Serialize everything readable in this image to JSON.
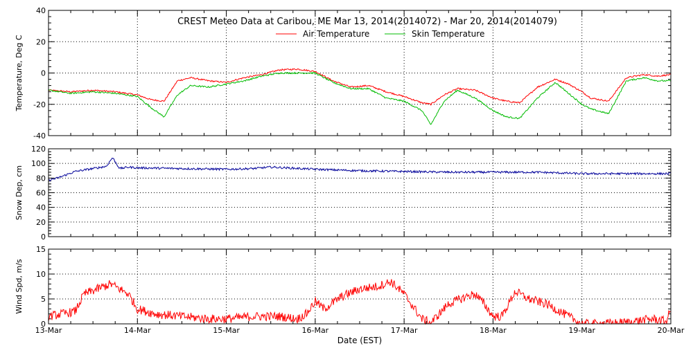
{
  "chart_data": [
    {
      "type": "line",
      "title": "CREST Meteo Data at Caribou, ME   Mar 13, 2014(2014072) - Mar 20, 2014(2014079)",
      "ylabel": "Temperature, Deg C",
      "ylim": [
        -40,
        40
      ],
      "yticks": [
        -40,
        -20,
        0,
        20,
        40
      ],
      "xlim": [
        0,
        7
      ],
      "grid": true,
      "legend": "top-center",
      "series": [
        {
          "name": "Air Temperature",
          "color": "#ff0000",
          "x": [
            0,
            0.25,
            0.5,
            0.75,
            1.0,
            1.15,
            1.3,
            1.45,
            1.6,
            1.8,
            2.0,
            2.2,
            2.4,
            2.6,
            2.8,
            3.0,
            3.2,
            3.4,
            3.6,
            3.8,
            4.0,
            4.2,
            4.3,
            4.45,
            4.6,
            4.8,
            5.0,
            5.15,
            5.3,
            5.5,
            5.7,
            5.85,
            6.0,
            6.1,
            6.3,
            6.5,
            6.7,
            6.85,
            7.0
          ],
          "values": [
            -11,
            -12,
            -11,
            -12,
            -14,
            -17,
            -18,
            -5,
            -3,
            -5,
            -6,
            -3,
            -1,
            2,
            2.5,
            1,
            -5,
            -9,
            -8,
            -12,
            -15,
            -19,
            -20,
            -14,
            -10,
            -11,
            -16,
            -18,
            -19,
            -9,
            -4,
            -7,
            -12,
            -16,
            -18,
            -3,
            -1,
            -2,
            -1
          ]
        },
        {
          "name": "Skin Temperature",
          "color": "#00bb00",
          "x": [
            0,
            0.25,
            0.5,
            0.75,
            1.0,
            1.15,
            1.3,
            1.45,
            1.6,
            1.8,
            2.0,
            2.2,
            2.4,
            2.6,
            2.8,
            3.0,
            3.2,
            3.4,
            3.6,
            3.8,
            4.0,
            4.2,
            4.3,
            4.45,
            4.6,
            4.8,
            5.0,
            5.15,
            5.3,
            5.5,
            5.7,
            5.85,
            6.0,
            6.1,
            6.3,
            6.5,
            6.7,
            6.85,
            7.0
          ],
          "values": [
            -11,
            -13,
            -12,
            -13,
            -15,
            -22,
            -28,
            -14,
            -8,
            -9,
            -7,
            -5,
            -2,
            0,
            0,
            0,
            -6,
            -10,
            -10,
            -16,
            -18,
            -24,
            -33,
            -18,
            -11,
            -16,
            -24,
            -28,
            -29,
            -16,
            -6,
            -13,
            -20,
            -23,
            -26,
            -5,
            -3,
            -5,
            -5
          ]
        }
      ]
    },
    {
      "type": "line",
      "ylabel": "Snow Dep, cm",
      "ylim": [
        0,
        120
      ],
      "yticks": [
        0,
        20,
        40,
        60,
        80,
        100,
        120
      ],
      "xlim": [
        0,
        7
      ],
      "grid": true,
      "series": [
        {
          "color": "#000099",
          "x": [
            0,
            0.1,
            0.3,
            0.5,
            0.65,
            0.72,
            0.8,
            0.9,
            1.0,
            1.5,
            2.0,
            2.3,
            2.5,
            3.0,
            3.5,
            4.0,
            4.5,
            5.0,
            5.5,
            6.0,
            6.5,
            7.0
          ],
          "values": [
            77,
            80,
            89,
            93,
            96,
            108,
            93,
            95,
            94,
            93,
            92,
            93,
            95,
            92,
            90,
            89,
            88,
            88,
            88,
            86,
            86,
            86
          ]
        }
      ]
    },
    {
      "type": "line",
      "ylabel": "Wind Spd, m/s",
      "xlabel": "Date (EST)",
      "ylim": [
        0,
        15
      ],
      "yticks": [
        0,
        5,
        10,
        15
      ],
      "xlim": [
        0,
        7
      ],
      "xticks": [
        "13-Mar",
        "14-Mar",
        "15-Mar",
        "16-Mar",
        "17-Mar",
        "18-Mar",
        "19-Mar",
        "20-Mar"
      ],
      "grid": true,
      "series": [
        {
          "color": "#ff0000",
          "x": [
            0,
            0.15,
            0.3,
            0.4,
            0.55,
            0.7,
            0.8,
            0.9,
            1.0,
            1.2,
            1.5,
            1.8,
            2.0,
            2.3,
            2.6,
            2.8,
            2.9,
            3.0,
            3.1,
            3.3,
            3.5,
            3.7,
            3.85,
            4.0,
            4.1,
            4.2,
            4.3,
            4.5,
            4.7,
            4.8,
            4.9,
            5.0,
            5.1,
            5.25,
            5.4,
            5.6,
            5.8,
            5.9,
            6.0,
            6.2,
            6.5,
            6.8,
            6.95,
            7.0
          ],
          "values": [
            1.5,
            2,
            2.5,
            6,
            7,
            8,
            7,
            6,
            3,
            2,
            1.5,
            1,
            1,
            1.5,
            1.5,
            1,
            2,
            4.5,
            3,
            5.5,
            7,
            7.5,
            8.5,
            6,
            3.5,
            1,
            0.2,
            4,
            5.5,
            6,
            4,
            1.5,
            1.5,
            6.5,
            5,
            4,
            2,
            1,
            0,
            0,
            0.3,
            1,
            0.5,
            3
          ]
        }
      ]
    }
  ]
}
